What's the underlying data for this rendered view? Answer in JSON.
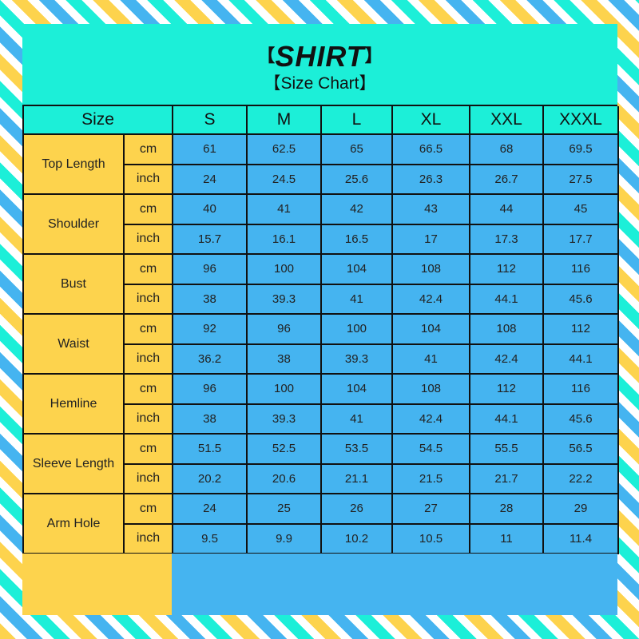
{
  "header": {
    "title": "SHIRT",
    "subtitle": "【Size Chart】",
    "bracket_left": "【",
    "bracket_right": "】"
  },
  "colors": {
    "teal": "#1cefd8",
    "yellow": "#fdd34d",
    "blue": "#45b4f0"
  },
  "table": {
    "size_header": "Size",
    "sizes": [
      "S",
      "M",
      "L",
      "XL",
      "XXL",
      "XXXL"
    ],
    "units": [
      "cm",
      "inch"
    ],
    "rows": [
      {
        "label": "Top Length",
        "cm": [
          "61",
          "62.5",
          "65",
          "66.5",
          "68",
          "69.5"
        ],
        "inch": [
          "24",
          "24.5",
          "25.6",
          "26.3",
          "26.7",
          "27.5"
        ]
      },
      {
        "label": "Shoulder",
        "cm": [
          "40",
          "41",
          "42",
          "43",
          "44",
          "45"
        ],
        "inch": [
          "15.7",
          "16.1",
          "16.5",
          "17",
          "17.3",
          "17.7"
        ]
      },
      {
        "label": "Bust",
        "cm": [
          "96",
          "100",
          "104",
          "108",
          "112",
          "116"
        ],
        "inch": [
          "38",
          "39.3",
          "41",
          "42.4",
          "44.1",
          "45.6"
        ]
      },
      {
        "label": "Waist",
        "cm": [
          "92",
          "96",
          "100",
          "104",
          "108",
          "112"
        ],
        "inch": [
          "36.2",
          "38",
          "39.3",
          "41",
          "42.4",
          "44.1"
        ]
      },
      {
        "label": "Hemline",
        "cm": [
          "96",
          "100",
          "104",
          "108",
          "112",
          "116"
        ],
        "inch": [
          "38",
          "39.3",
          "41",
          "42.4",
          "44.1",
          "45.6"
        ]
      },
      {
        "label": "Sleeve Length",
        "cm": [
          "51.5",
          "52.5",
          "53.5",
          "54.5",
          "55.5",
          "56.5"
        ],
        "inch": [
          "20.2",
          "20.6",
          "21.1",
          "21.5",
          "21.7",
          "22.2"
        ]
      },
      {
        "label": "Arm Hole",
        "cm": [
          "24",
          "25",
          "26",
          "27",
          "28",
          "29"
        ],
        "inch": [
          "9.5",
          "9.9",
          "10.2",
          "10.5",
          "11",
          "11.4"
        ]
      }
    ]
  }
}
